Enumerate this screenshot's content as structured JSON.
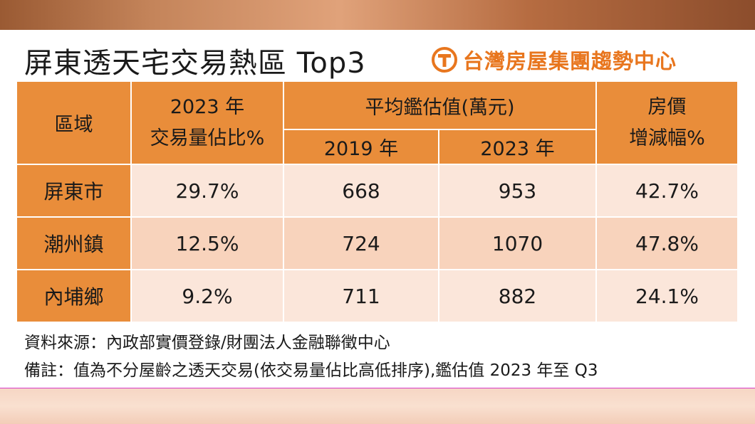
{
  "title": "屏東透天宅交易熱區 Top3",
  "brand": {
    "name": "台灣房屋集團趨勢中心",
    "logo_icon": "taiwan-realty-logo-icon",
    "color": "#e8761e"
  },
  "table": {
    "header_region": "區域",
    "header_share_line1": "2023 年",
    "header_share_line2": "交易量佔比%",
    "header_avg": "平均鑑估值(萬元)",
    "header_2019": "2019 年",
    "header_2023": "2023 年",
    "header_change_line1": "房價",
    "header_change_line2": "增減幅%",
    "rows": [
      {
        "region": "屏東市",
        "share": "29.7%",
        "v2019": "668",
        "v2023": "953",
        "change": "42.7%"
      },
      {
        "region": "潮州鎮",
        "share": "12.5%",
        "v2019": "724",
        "v2023": "1070",
        "change": "47.8%"
      },
      {
        "region": "內埔鄉",
        "share": "9.2%",
        "v2019": "711",
        "v2023": "882",
        "change": "24.1%"
      }
    ]
  },
  "source": "資料來源：內政部實價登錄/財團法人金融聯徵中心",
  "note": "備註：值為不分屋齡之透天交易(依交易量佔比高低排序),鑑估值 2023 年至 Q3",
  "colors": {
    "header": "#e98d3a",
    "row_light": "#fbe6da",
    "row_mid": "#f8d3bc"
  }
}
